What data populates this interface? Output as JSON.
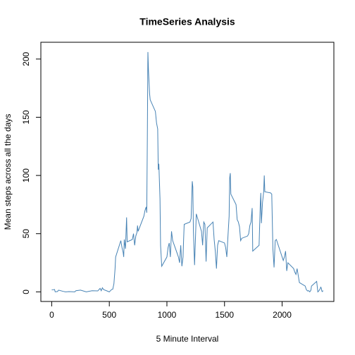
{
  "chart_data": {
    "type": "line",
    "title": "TimeSeries Analysis",
    "xlabel": "5 Minute Interval",
    "ylabel": "Mean steps across all the days",
    "color": "#4682b4",
    "x": [
      0,
      25,
      30,
      50,
      60,
      100,
      120,
      150,
      200,
      210,
      250,
      300,
      350,
      400,
      420,
      430,
      440,
      450,
      500,
      505,
      520,
      530,
      540,
      550,
      555,
      600,
      610,
      620,
      625,
      630,
      640,
      650,
      655,
      700,
      710,
      720,
      730,
      740,
      745,
      750,
      800,
      810,
      820,
      825,
      830,
      835,
      840,
      850,
      855,
      900,
      910,
      920,
      925,
      930,
      940,
      945,
      955,
      1000,
      1010,
      1020,
      1030,
      1040,
      1050,
      1100,
      1110,
      1120,
      1130,
      1140,
      1145,
      1150,
      1200,
      1210,
      1220,
      1225,
      1230,
      1240,
      1255,
      1300,
      1310,
      1320,
      1330,
      1340,
      1350,
      1400,
      1410,
      1420,
      1430,
      1440,
      1450,
      1500,
      1510,
      1520,
      1530,
      1540,
      1545,
      1550,
      1555,
      1600,
      1610,
      1620,
      1630,
      1640,
      1650,
      1700,
      1710,
      1720,
      1730,
      1740,
      1745,
      1800,
      1810,
      1815,
      1820,
      1830,
      1840,
      1845,
      1850,
      1900,
      1910,
      1920,
      1930,
      1940,
      1950,
      2000,
      2010,
      2020,
      2030,
      2040,
      2050,
      2100,
      2110,
      2120,
      2130,
      2140,
      2150,
      2200,
      2210,
      2220,
      2230,
      2240,
      2250,
      2255,
      2300,
      2310,
      2320,
      2330,
      2335,
      2340,
      2345,
      2350,
      2355
    ],
    "values": [
      1.7,
      2,
      0,
      0.3,
      1.5,
      0.4,
      0,
      0.2,
      0,
      1,
      1.5,
      0,
      1,
      0.8,
      3,
      1,
      3.5,
      2,
      0,
      0.5,
      2,
      2.3,
      7,
      20,
      30,
      44,
      38,
      34,
      30,
      45,
      37,
      64,
      43,
      45,
      50,
      40,
      48,
      51,
      57,
      52,
      65,
      70,
      73,
      68,
      130,
      206,
      190,
      170,
      165,
      155,
      145,
      140,
      105,
      110,
      80,
      40,
      22,
      30,
      38,
      42,
      30,
      52,
      44,
      30,
      25,
      40,
      22,
      30,
      45,
      58,
      60,
      63,
      95,
      90,
      52,
      23,
      67,
      52,
      40,
      60,
      58,
      26,
      55,
      60,
      45,
      35,
      20,
      40,
      44,
      42,
      38,
      30,
      48,
      65,
      98,
      102,
      84,
      75,
      62,
      60,
      56,
      44,
      46,
      48,
      50,
      57,
      60,
      72,
      35,
      40,
      74,
      85,
      59,
      77,
      86,
      100,
      86,
      85,
      84,
      37,
      21,
      44,
      45,
      30,
      27,
      30,
      35,
      18,
      25,
      20,
      17,
      15,
      20,
      14,
      8,
      5,
      2,
      0.8,
      1,
      0,
      1.5,
      5,
      9,
      0,
      1,
      2.6,
      4,
      3.3,
      0.6,
      0.2,
      1.1
    ],
    "xlim": [
      -94.2,
      2449.2
    ],
    "ylim": [
      -8.25,
      214.42
    ],
    "xticks": [
      0,
      500,
      1000,
      1500,
      2000
    ],
    "yticks": [
      0,
      50,
      100,
      150,
      200
    ]
  }
}
